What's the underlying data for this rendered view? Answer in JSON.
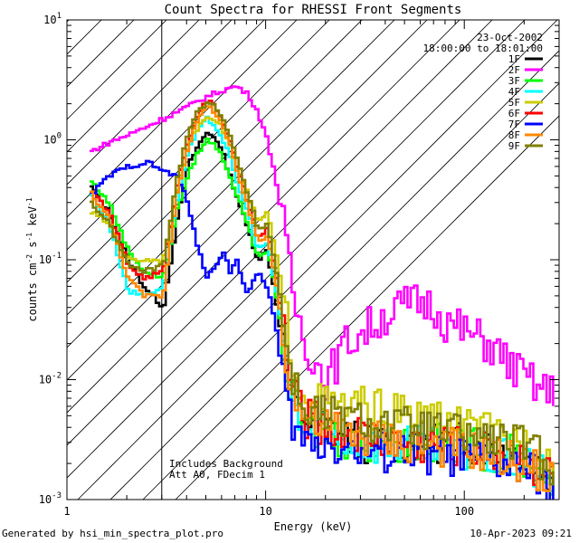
{
  "chart_data": {
    "type": "line",
    "title": "Count Spectra for RHESSI Front Segments",
    "xlabel": "Energy (keV)",
    "ylabel": "counts cm-2 s-1 keV-1",
    "xscale": "log",
    "yscale": "log",
    "xlim": [
      1,
      300
    ],
    "ylim": [
      0.001,
      10
    ],
    "x_ticks": [
      {
        "value": 1,
        "label": "1"
      },
      {
        "value": 10,
        "label": "10"
      },
      {
        "value": 100,
        "label": "100"
      }
    ],
    "y_ticks": [
      {
        "value": 10,
        "mant": "10",
        "exp": "1"
      },
      {
        "value": 1,
        "mant": "10",
        "exp": "0"
      },
      {
        "value": 0.1,
        "mant": "10",
        "exp": "-1"
      },
      {
        "value": 0.01,
        "mant": "10",
        "exp": "-2"
      },
      {
        "value": 0.001,
        "mant": "10",
        "exp": "-3"
      }
    ],
    "date": "23-Oct-2002",
    "time_range": "18:00:00 to 18:01:00",
    "notes": [
      "Includes Background",
      "Att A0, FDecim 1"
    ],
    "hatched_region_keV": [
      1,
      3
    ],
    "series": [
      {
        "name": "1F",
        "color": "#000000",
        "x": [
          1.3,
          1.6,
          2.0,
          2.4,
          3.0,
          3.5,
          4.0,
          4.5,
          5.0,
          5.5,
          6.0,
          6.5,
          7.0,
          8.0,
          9.0,
          10.0,
          11.0,
          12.0,
          13.0,
          15.0,
          20.0,
          30.0,
          50.0,
          100.0,
          200.0,
          280.0
        ],
        "y": [
          0.4,
          0.25,
          0.1,
          0.06,
          0.04,
          0.2,
          0.6,
          0.9,
          1.15,
          1.05,
          0.75,
          0.5,
          0.35,
          0.18,
          0.1,
          0.12,
          0.05,
          0.02,
          0.008,
          0.005,
          0.004,
          0.003,
          0.003,
          0.003,
          0.0025,
          0.0015
        ]
      },
      {
        "name": "2F",
        "color": "#ff00ff",
        "x": [
          1.3,
          1.6,
          2.0,
          2.5,
          3.0,
          3.5,
          4.0,
          5.0,
          6.0,
          7.0,
          8.0,
          9.0,
          10.0,
          11.0,
          12.0,
          13.0,
          14.0,
          15.0,
          17.0,
          20.0,
          25.0,
          30.0,
          40.0,
          50.0,
          60.0,
          70.0,
          80.0,
          100.0,
          130.0,
          170.0,
          220.0,
          280.0
        ],
        "y": [
          0.8,
          0.95,
          1.1,
          1.3,
          1.5,
          1.7,
          1.9,
          2.3,
          2.6,
          2.8,
          2.4,
          1.7,
          1.0,
          0.5,
          0.2,
          0.08,
          0.04,
          0.025,
          0.015,
          0.01,
          0.02,
          0.025,
          0.035,
          0.042,
          0.045,
          0.04,
          0.03,
          0.025,
          0.02,
          0.013,
          0.009,
          0.0075
        ]
      },
      {
        "name": "3F",
        "color": "#00ff00",
        "x": [
          1.3,
          1.6,
          2.0,
          2.4,
          3.0,
          3.5,
          4.0,
          4.5,
          5.0,
          5.5,
          6.0,
          6.5,
          7.0,
          8.0,
          9.0,
          10.0,
          11.0,
          12.0,
          13.0,
          15.0,
          20.0,
          30.0,
          50.0,
          100.0,
          200.0,
          280.0
        ],
        "y": [
          0.45,
          0.3,
          0.12,
          0.08,
          0.07,
          0.25,
          0.5,
          0.8,
          1.0,
          0.9,
          0.7,
          0.5,
          0.35,
          0.2,
          0.1,
          0.12,
          0.06,
          0.02,
          0.008,
          0.004,
          0.0035,
          0.003,
          0.003,
          0.0028,
          0.0022,
          0.0015
        ]
      },
      {
        "name": "4F",
        "color": "#00ffff",
        "x": [
          1.3,
          1.6,
          2.0,
          2.4,
          3.0,
          3.5,
          4.0,
          4.5,
          5.0,
          5.5,
          6.0,
          6.5,
          7.0,
          8.0,
          9.0,
          10.0,
          11.0,
          12.0,
          13.0,
          15.0,
          20.0,
          30.0,
          50.0,
          100.0,
          200.0,
          280.0
        ],
        "y": [
          0.35,
          0.2,
          0.055,
          0.05,
          0.06,
          0.3,
          0.8,
          1.2,
          1.5,
          1.3,
          1.0,
          0.7,
          0.45,
          0.25,
          0.12,
          0.14,
          0.06,
          0.025,
          0.008,
          0.004,
          0.0035,
          0.003,
          0.0028,
          0.0025,
          0.002,
          0.0014
        ]
      },
      {
        "name": "5F",
        "color": "#cccc00",
        "x": [
          1.3,
          1.6,
          2.0,
          2.4,
          3.0,
          3.5,
          4.0,
          4.5,
          5.0,
          5.5,
          6.0,
          6.5,
          7.0,
          8.0,
          9.0,
          10.0,
          11.0,
          12.0,
          13.0,
          15.0,
          20.0,
          30.0,
          50.0,
          100.0,
          200.0,
          280.0
        ],
        "y": [
          0.25,
          0.2,
          0.1,
          0.1,
          0.1,
          0.35,
          0.9,
          1.3,
          1.6,
          1.5,
          1.2,
          0.9,
          0.6,
          0.35,
          0.2,
          0.25,
          0.12,
          0.05,
          0.02,
          0.008,
          0.006,
          0.006,
          0.005,
          0.004,
          0.003,
          0.002
        ]
      },
      {
        "name": "6F",
        "color": "#ff0000",
        "x": [
          1.3,
          1.6,
          2.0,
          2.4,
          3.0,
          3.5,
          4.0,
          4.5,
          5.0,
          5.5,
          6.0,
          6.5,
          7.0,
          8.0,
          9.0,
          10.0,
          11.0,
          12.0,
          13.0,
          15.0,
          20.0,
          30.0,
          50.0,
          100.0,
          200.0,
          280.0
        ],
        "y": [
          0.38,
          0.25,
          0.09,
          0.07,
          0.08,
          0.4,
          1.0,
          1.7,
          2.1,
          1.9,
          1.4,
          1.0,
          0.6,
          0.3,
          0.15,
          0.18,
          0.08,
          0.03,
          0.01,
          0.005,
          0.004,
          0.0035,
          0.003,
          0.0028,
          0.0022,
          0.0015
        ]
      },
      {
        "name": "7F",
        "color": "#0000ff",
        "x": [
          1.3,
          1.6,
          2.0,
          2.5,
          3.0,
          3.5,
          4.0,
          4.5,
          5.0,
          5.5,
          6.0,
          6.5,
          7.0,
          8.0,
          9.0,
          10.0,
          11.0,
          12.0,
          13.0,
          15.0,
          20.0,
          30.0,
          50.0,
          100.0,
          200.0,
          280.0
        ],
        "y": [
          0.35,
          0.5,
          0.6,
          0.65,
          0.55,
          0.5,
          0.3,
          0.12,
          0.07,
          0.09,
          0.12,
          0.08,
          0.1,
          0.05,
          0.08,
          0.06,
          0.03,
          0.01,
          0.005,
          0.003,
          0.003,
          0.0025,
          0.0025,
          0.0022,
          0.0018,
          0.0012
        ]
      },
      {
        "name": "8F",
        "color": "#ff8800",
        "x": [
          1.3,
          1.6,
          2.0,
          2.4,
          3.0,
          3.5,
          4.0,
          4.5,
          5.0,
          5.5,
          6.0,
          6.5,
          7.0,
          8.0,
          9.0,
          10.0,
          11.0,
          12.0,
          13.0,
          15.0,
          20.0,
          30.0,
          50.0,
          100.0,
          200.0,
          280.0
        ],
        "y": [
          0.36,
          0.22,
          0.07,
          0.05,
          0.05,
          0.35,
          0.9,
          1.5,
          1.9,
          1.7,
          1.3,
          0.9,
          0.55,
          0.28,
          0.14,
          0.16,
          0.07,
          0.028,
          0.01,
          0.005,
          0.004,
          0.0035,
          0.003,
          0.0027,
          0.002,
          0.0014
        ]
      },
      {
        "name": "9F",
        "color": "#808000",
        "x": [
          1.3,
          1.6,
          2.0,
          2.4,
          3.0,
          3.5,
          4.0,
          4.5,
          5.0,
          5.5,
          6.0,
          6.5,
          7.0,
          8.0,
          9.0,
          10.0,
          11.0,
          12.0,
          13.0,
          15.0,
          20.0,
          30.0,
          50.0,
          100.0,
          200.0,
          280.0
        ],
        "y": [
          0.3,
          0.2,
          0.09,
          0.08,
          0.09,
          0.45,
          1.2,
          1.8,
          2.0,
          1.9,
          1.5,
          1.1,
          0.7,
          0.35,
          0.18,
          0.2,
          0.09,
          0.035,
          0.012,
          0.006,
          0.005,
          0.0045,
          0.004,
          0.0035,
          0.0028,
          0.0018
        ]
      }
    ]
  },
  "footer": {
    "generated_by": "Generated by hsi_min_spectra_plot.pro",
    "timestamp": "10-Apr-2023 09:21"
  }
}
